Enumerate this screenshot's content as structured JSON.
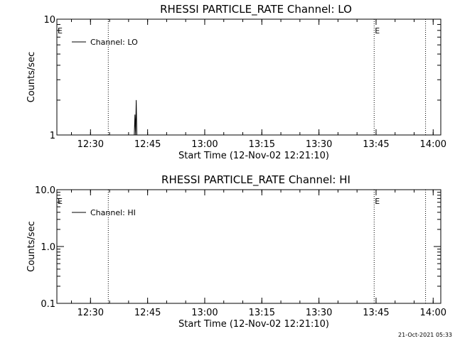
{
  "timestamp": "21-Oct-2021 05:33",
  "chart_data": [
    {
      "type": "line",
      "title": "RHESSI PARTICLE_RATE Channel: LO",
      "xlabel": "Start Time (12-Nov-02 12:21:10)",
      "ylabel": "Counts/sec",
      "x_ticks": [
        "12:30",
        "12:45",
        "13:00",
        "13:15",
        "13:30",
        "13:45",
        "14:00"
      ],
      "y_ticks": [
        "1",
        "10"
      ],
      "y_scale": "log",
      "xlim": [
        "12:21:10",
        "14:02:00"
      ],
      "ylim": [
        1,
        10
      ],
      "event_markers": [
        {
          "time": "12:34:40",
          "label": "",
          "style": "dotted"
        },
        {
          "time": "13:44:30",
          "label": "E",
          "style": "dotted"
        },
        {
          "time": "13:58:00",
          "label": "",
          "style": "dotted"
        }
      ],
      "left_marker_label": "E",
      "legend": {
        "placement": "top-left",
        "entries": [
          "Channel: LO"
        ]
      },
      "series": [
        {
          "name": "Channel: LO",
          "points": [
            {
              "t": "12:41:30",
              "v": 1.0
            },
            {
              "t": "12:41:40",
              "v": 1.5
            },
            {
              "t": "12:41:50",
              "v": 1.0
            },
            {
              "t": "12:42:00",
              "v": 2.0
            },
            {
              "t": "12:42:10",
              "v": 1.0
            }
          ]
        }
      ]
    },
    {
      "type": "line",
      "title": "RHESSI PARTICLE_RATE Channel: HI",
      "xlabel": "Start Time (12-Nov-02 12:21:10)",
      "ylabel": "Counts/sec",
      "x_ticks": [
        "12:30",
        "12:45",
        "13:00",
        "13:15",
        "13:30",
        "13:45",
        "14:00"
      ],
      "y_ticks": [
        "0.1",
        "1.0",
        "10.0"
      ],
      "y_scale": "log",
      "xlim": [
        "12:21:10",
        "14:02:00"
      ],
      "ylim": [
        0.1,
        10
      ],
      "event_markers": [
        {
          "time": "12:34:40",
          "label": "",
          "style": "dotted"
        },
        {
          "time": "13:44:30",
          "label": "E",
          "style": "dotted"
        },
        {
          "time": "13:58:00",
          "label": "",
          "style": "dotted"
        }
      ],
      "left_marker_label": "E",
      "legend": {
        "placement": "top-left",
        "entries": [
          "Channel: HI"
        ]
      },
      "series": [
        {
          "name": "Channel: HI",
          "points": []
        }
      ]
    }
  ]
}
